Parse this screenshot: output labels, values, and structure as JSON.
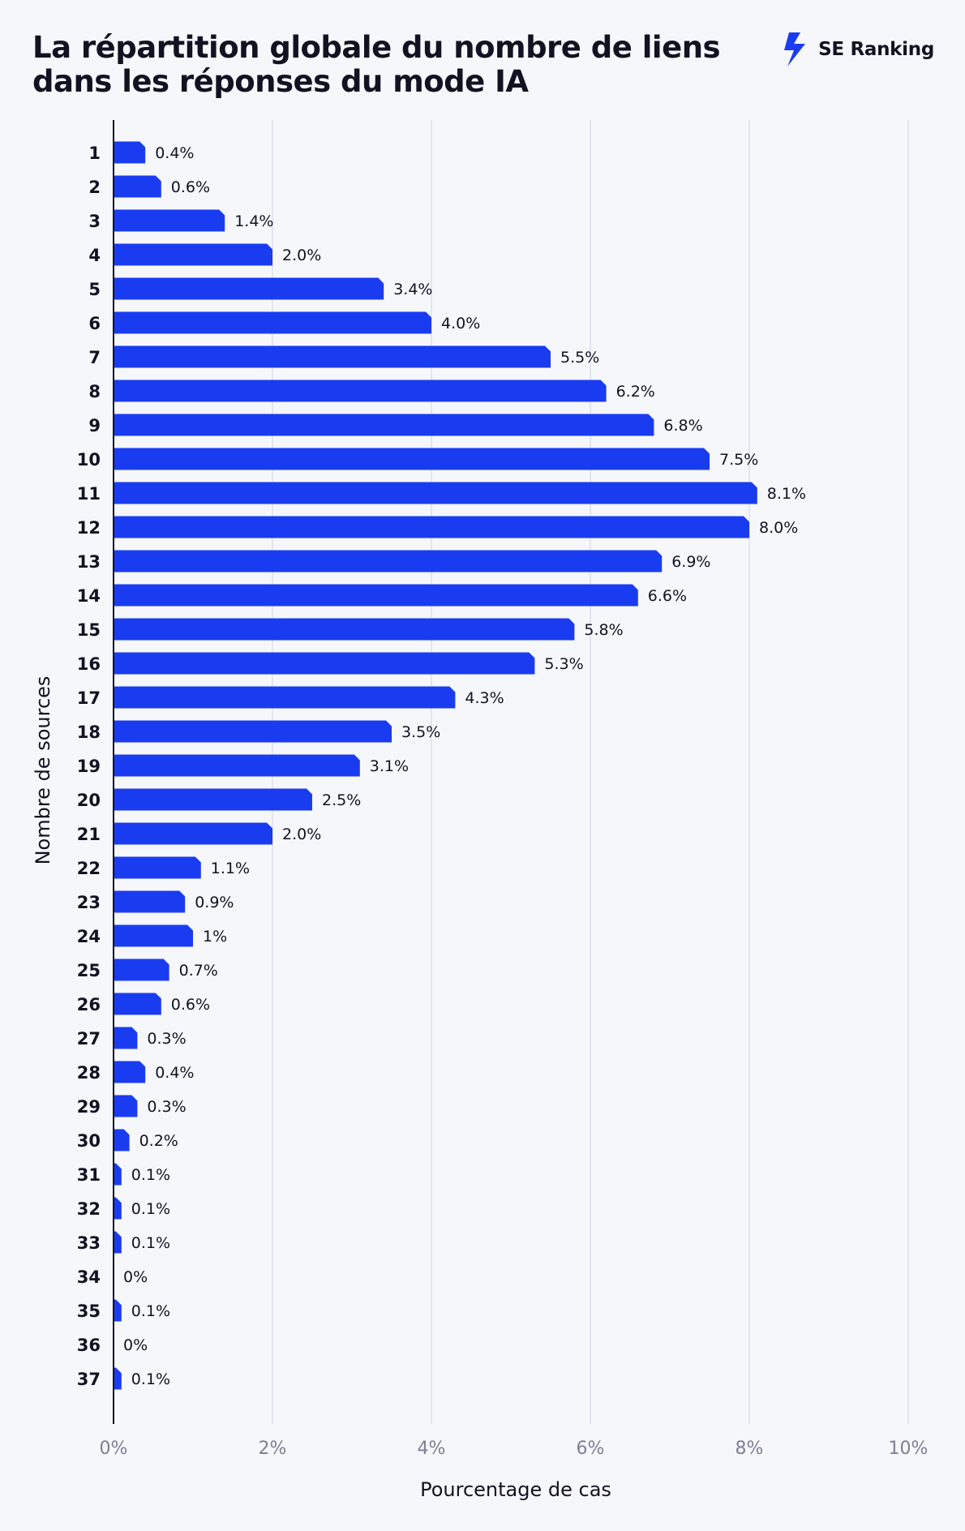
{
  "header": {
    "title": "La répartition globale du nombre de liens dans les réponses du mode IA",
    "brand": "SE Ranking"
  },
  "colors": {
    "bar": "#1a3cf0",
    "grid": "#dde1ec",
    "axis": "#111322",
    "tick": "#7b8095",
    "background": "#f5f7fb"
  },
  "chart_data": {
    "type": "bar",
    "orientation": "horizontal",
    "xlabel": "Pourcentage de cas",
    "ylabel": "Nombre de sources",
    "xlim": [
      0,
      10
    ],
    "xticks": [
      "0%",
      "2%",
      "4%",
      "6%",
      "8%",
      "10%"
    ],
    "grid": "vertical",
    "categories": [
      "1",
      "2",
      "3",
      "4",
      "5",
      "6",
      "7",
      "8",
      "9",
      "10",
      "11",
      "12",
      "13",
      "14",
      "15",
      "16",
      "17",
      "18",
      "19",
      "20",
      "21",
      "22",
      "23",
      "24",
      "25",
      "26",
      "27",
      "28",
      "29",
      "30",
      "31",
      "32",
      "33",
      "34",
      "35",
      "36",
      "37"
    ],
    "values": [
      0.4,
      0.6,
      1.4,
      2.0,
      3.4,
      4.0,
      5.5,
      6.2,
      6.8,
      7.5,
      8.1,
      8.0,
      6.9,
      6.6,
      5.8,
      5.3,
      4.3,
      3.5,
      3.1,
      2.5,
      2.0,
      1.1,
      0.9,
      1,
      0.7,
      0.6,
      0.3,
      0.4,
      0.3,
      0.2,
      0.1,
      0.1,
      0.1,
      0,
      0.1,
      0,
      0.1
    ],
    "labels": [
      "0.4%",
      "0.6%",
      "1.4%",
      "2.0%",
      "3.4%",
      "4.0%",
      "5.5%",
      "6.2%",
      "6.8%",
      "7.5%",
      "8.1%",
      "8.0%",
      "6.9%",
      "6.6%",
      "5.8%",
      "5.3%",
      "4.3%",
      "3.5%",
      "3.1%",
      "2.5%",
      "2.0%",
      "1.1%",
      "0.9%",
      "1%",
      "0.7%",
      "0.6%",
      "0.3%",
      "0.4%",
      "0.3%",
      "0.2%",
      "0.1%",
      "0.1%",
      "0.1%",
      "0%",
      "0.1%",
      "0%",
      "0.1%"
    ]
  }
}
